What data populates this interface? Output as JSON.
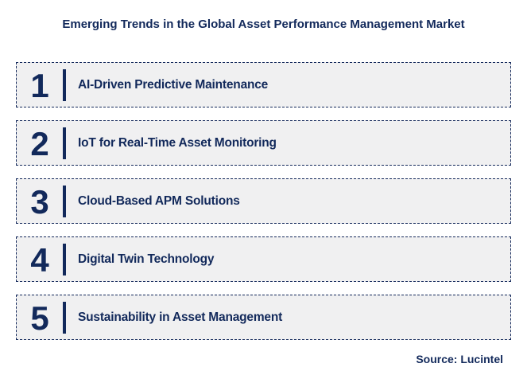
{
  "title": "Emerging Trends in the Global Asset Performance Management Market",
  "source": "Source: Lucintel",
  "colors": {
    "navy_text": "#12295B",
    "row_background": "#F0F0F1",
    "row_border_dashed": "#14295B",
    "page_background": "#FFFFFF"
  },
  "trends": [
    {
      "number": "1",
      "label": "AI-Driven Predictive Maintenance"
    },
    {
      "number": "2",
      "label": "IoT for Real-Time Asset Monitoring"
    },
    {
      "number": "3",
      "label": "Cloud-Based APM Solutions"
    },
    {
      "number": "4",
      "label": "Digital Twin Technology"
    },
    {
      "number": "5",
      "label": "Sustainability in Asset Management"
    }
  ]
}
